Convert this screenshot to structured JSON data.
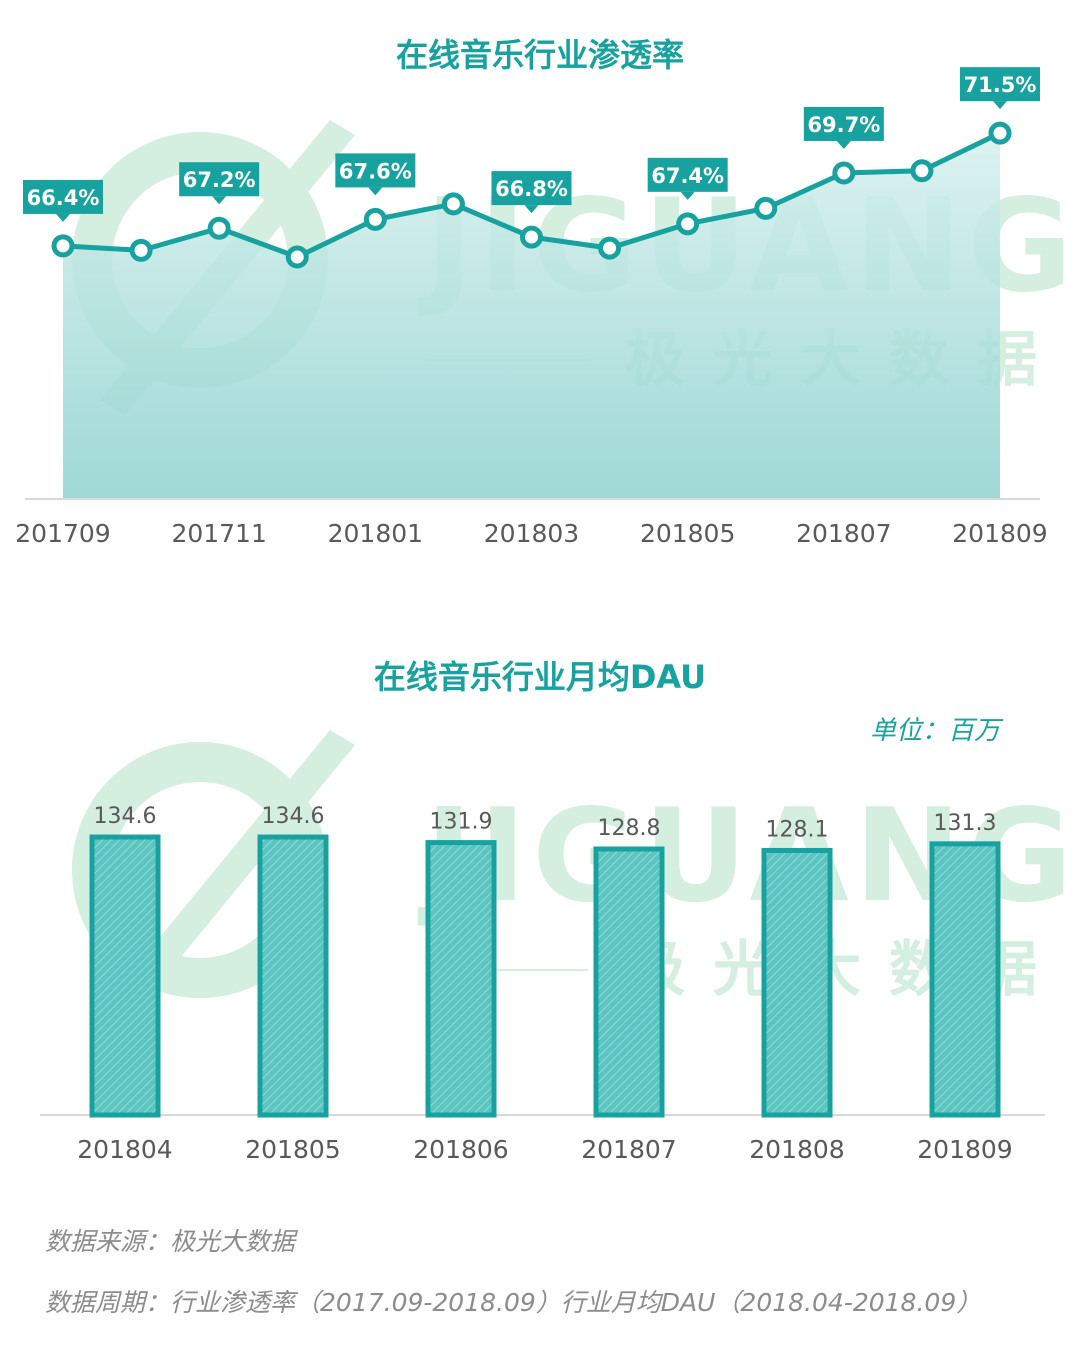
{
  "colors": {
    "accent": "#17a2a0",
    "label_bg": "#17a2a0",
    "label_text": "#ffffff",
    "area_top": "#d6f0ee",
    "area_bottom": "#8ed2cf",
    "bar_fill": "#5cc5c2",
    "bar_stroke": "#17a2a0",
    "axis_text": "#595959",
    "watermark": "#d4eee0"
  },
  "watermark": {
    "brand": "JIGUANG",
    "subtitle": "极光大数据"
  },
  "chart_data": [
    {
      "type": "line",
      "title": "在线音乐行业渗透率",
      "x": [
        "201709",
        "201710",
        "201711",
        "201712",
        "201801",
        "201802",
        "201803",
        "201804",
        "201805",
        "201806",
        "201807",
        "201808",
        "201809"
      ],
      "series": [
        {
          "values": [
            66.4,
            66.2,
            67.2,
            65.9,
            67.6,
            68.3,
            66.8,
            66.3,
            67.4,
            68.1,
            69.7,
            69.8,
            71.5
          ]
        }
      ],
      "data_labels": [
        {
          "index": 0,
          "text": "66.4%"
        },
        {
          "index": 2,
          "text": "67.2%"
        },
        {
          "index": 4,
          "text": "67.6%"
        },
        {
          "index": 6,
          "text": "66.8%"
        },
        {
          "index": 8,
          "text": "67.4%"
        },
        {
          "index": 10,
          "text": "69.7%"
        },
        {
          "index": 12,
          "text": "71.5%"
        }
      ],
      "tick_labels": [
        "201709",
        "201711",
        "201801",
        "201803",
        "201805",
        "201807",
        "201809"
      ],
      "ylim": [
        55,
        73
      ],
      "grid": false
    },
    {
      "type": "bar",
      "title": "在线音乐行业月均DAU",
      "unit_label": "单位：百万",
      "categories": [
        "201804",
        "201805",
        "201806",
        "201807",
        "201808",
        "201809"
      ],
      "values": [
        134.6,
        134.6,
        131.9,
        128.8,
        128.1,
        131.3
      ],
      "value_labels": [
        "134.6",
        "134.6",
        "131.9",
        "128.8",
        "128.1",
        "131.3"
      ],
      "ylim": [
        0,
        138
      ],
      "grid": false
    }
  ],
  "footer": {
    "source": "数据来源：极光大数据",
    "period": "数据周期：行业渗透率（2017.09-2018.09）行业月均DAU（2018.04-2018.09）"
  }
}
